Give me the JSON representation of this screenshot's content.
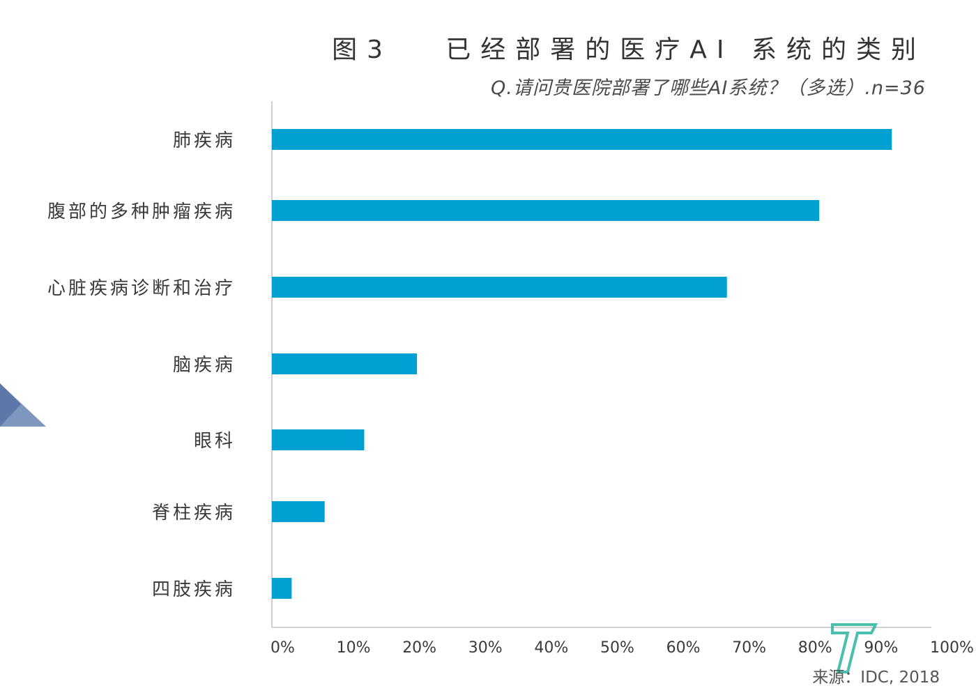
{
  "chart_data": {
    "type": "bar",
    "orientation": "horizontal",
    "title": "图3   已经部署的医疗AI 系统的类别",
    "subtitle": "Q.请问贵医院部署了哪些AI系统？（多选）.n=36",
    "categories": [
      "肺疾病",
      "腹部的多种肿瘤疾病",
      "心脏疾病诊断和治疗",
      "脑疾病",
      "眼科",
      "脊柱疾病",
      "四肢疾病"
    ],
    "values": [
      94,
      83,
      69,
      22,
      14,
      8,
      3
    ],
    "unit": "%",
    "xlim": [
      0,
      100
    ],
    "xticks": [
      "0%",
      "10%",
      "20%",
      "30%",
      "40%",
      "50%",
      "60%",
      "70%",
      "80%",
      "90%",
      "100%"
    ],
    "bar_color": "#00A0D2",
    "grid": false,
    "source": "来源：IDC, 2018"
  }
}
